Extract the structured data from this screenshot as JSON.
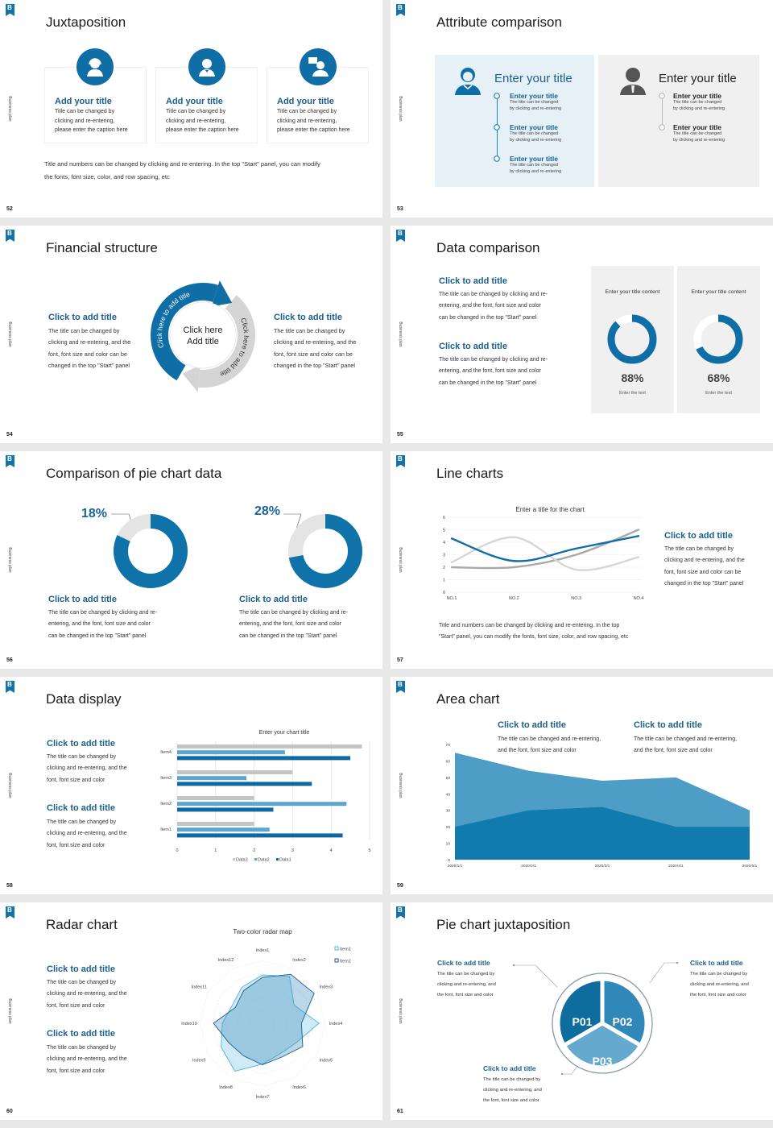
{
  "brand": {
    "side_label": "Business plan",
    "accent": "#0f6ea5",
    "title_blue": "#1a5f8d"
  },
  "s52": {
    "page": "52",
    "title": "Juxtaposition",
    "cards": [
      {
        "title": "Add your title",
        "text": "Title can be changed by\nclicking and re-entering,\nplease enter the caption here",
        "icon": "headset-person-icon"
      },
      {
        "title": "Add your title",
        "text": "Title can be changed by\nclicking and re-entering,\nplease enter the caption here",
        "icon": "person-icon"
      },
      {
        "title": "Add your title",
        "text": "Title can be changed by\nclicking and re-entering,\nplease enter the caption here",
        "icon": "person-chat-icon"
      }
    ],
    "footer": "Title and numbers can be changed by clicking and re-entering. In the top \"Start\" panel, you can modify\nthe fonts, font size, color, and row spacing, etc"
  },
  "s53": {
    "page": "53",
    "title": "Attribute comparison",
    "left": {
      "title": "Enter your title",
      "items": [
        {
          "title": "Enter your title",
          "text": "The title can be changed\nby clicking and re-entering"
        },
        {
          "title": "Enter your title",
          "text": "The title can be changed\nby clicking and re-entering"
        },
        {
          "title": "Enter your title",
          "text": "The title can be changed\nby clicking and re-entering"
        }
      ]
    },
    "right": {
      "title": "Enter your title",
      "items": [
        {
          "title": "Enter your title",
          "text": "The title can be changed\nby clicking and re-entering"
        },
        {
          "title": "Enter your title",
          "text": "The title can be changed\nby clicking and re-entering"
        }
      ]
    }
  },
  "s54": {
    "page": "54",
    "title": "Financial structure",
    "left": {
      "title": "Click to add title",
      "text": "The title can be changed by\nclicking and re-entering, and the\nfont, font size and color can be\nchanged in the top \"Start\" panel"
    },
    "right": {
      "title": "Click to add title",
      "text": "The title can be changed by\nclicking and re-entering, and the\nfont, font size and color can be\nchanged in the top \"Start\" panel"
    },
    "center": "Click here\nAdd title",
    "arc_blue": "Click here to add title",
    "arc_gray": "Click here to add title"
  },
  "s55": {
    "page": "55",
    "title": "Data comparison",
    "texts": [
      {
        "title": "Click to add title",
        "text": "The title can be changed by clicking and re-\nentering, and the font, font size and color\ncan be changed in the top \"Start\" panel"
      },
      {
        "title": "Click to add title",
        "text": "The title can be changed by clicking and re-\nentering, and the font, font size and color\ncan be changed in the top \"Start\" panel"
      }
    ],
    "cards": [
      {
        "title": "Enter your title content",
        "value": 88,
        "label": "88%",
        "sub": "Enter the text"
      },
      {
        "title": "Enter your title content",
        "value": 68,
        "label": "68%",
        "sub": "Enter the text"
      }
    ]
  },
  "s56": {
    "page": "56",
    "title": "Comparison of pie chart data",
    "pies": [
      {
        "value": 18,
        "label": "18%",
        "title": "Click to add title",
        "text": "The title can be changed by clicking and re-\nentering, and the font, font size and color\ncan be changed in the top \"Start\" panel"
      },
      {
        "value": 28,
        "label": "28%",
        "title": "Click to add title",
        "text": "The title can be changed by clicking and re-\nentering, and the font, font size and color\ncan be changed in the top \"Start\" panel"
      }
    ]
  },
  "s57": {
    "page": "57",
    "title": "Line charts",
    "side": {
      "title": "Click to add title",
      "text": "The title can be changed by\nclicking and re-entering, and the\nfont, font size and color can be\nchanged in the top \"Start\" panel"
    },
    "footer": "Title and numbers can be changed by clicking and re-entering. In the top\n\"Start\" panel, you can modify the fonts, font size, color, and row spacing, etc"
  },
  "s58": {
    "page": "58",
    "title": "Data display",
    "texts": [
      {
        "title": "Click to add title",
        "text": "The title can be changed by\nclicking and re-entering, and the\nfont, font size and color"
      },
      {
        "title": "Click to add title",
        "text": "The title can be changed by\nclicking and re-entering, and the\nfont, font size and color"
      }
    ]
  },
  "s59": {
    "page": "59",
    "title": "Area chart",
    "texts": [
      {
        "title": "Click to add title",
        "text": "The title can be changed and re-entering,\nand the font, font size and color"
      },
      {
        "title": "Click to add title",
        "text": "The title can be changed and re-entering,\nand the font, font size and color"
      }
    ]
  },
  "s60": {
    "page": "60",
    "title": "Radar chart",
    "texts": [
      {
        "title": "Click to add title",
        "text": "The title can be changed by\nclicking and re-entering, and the\nfont, font size and color"
      },
      {
        "title": "Click to add title",
        "text": "The title can be changed by\nclicking and re-entering, and the\nfont, font size and color"
      }
    ]
  },
  "s61": {
    "page": "61",
    "title": "Pie chart juxtaposition",
    "segments": [
      "P01",
      "P02",
      "P03"
    ],
    "texts": [
      {
        "title": "Click to add title",
        "text": "The title can be changed by\nclicking and re-entering, and\nthe font, font size and color"
      },
      {
        "title": "Click to add title",
        "text": "The title can be changed by\nclicking and re-entering, and\nthe font, font size and color"
      },
      {
        "title": "Click to add title",
        "text": "The title can be changed by\nclicking and re-entering, and\nthe font, font size and color"
      }
    ]
  },
  "chart_data": [
    {
      "type": "line",
      "title": "Enter a title for the chart",
      "categories": [
        "NO.1",
        "NO.2",
        "NO.3",
        "NO.4"
      ],
      "ylim": [
        0,
        6
      ],
      "yticks": [
        0,
        1,
        2,
        3,
        4,
        5,
        6
      ],
      "grid": true,
      "series": [
        {
          "values": [
            4.3,
            2.5,
            3.5,
            4.5
          ],
          "color": "#0f6ea5"
        },
        {
          "values": [
            2.4,
            4.4,
            1.8,
            2.8
          ],
          "color": "#d6d6d6"
        },
        {
          "values": [
            2.0,
            2.0,
            3.0,
            5.0
          ],
          "color": "#a8a8a8"
        }
      ]
    },
    {
      "type": "bar",
      "orientation": "horizontal",
      "title": "Enter your chart title",
      "categories": [
        "Item4",
        "Item3",
        "Item2",
        "Item1"
      ],
      "xlim": [
        0,
        5
      ],
      "xticks": [
        0,
        1,
        2,
        3,
        4,
        5
      ],
      "legend": "bottom",
      "series": [
        {
          "name": "Data3",
          "values": [
            4.8,
            3.0,
            2.0,
            2.0
          ],
          "color": "#c4c4c4"
        },
        {
          "name": "Data2",
          "values": [
            2.8,
            1.8,
            4.4,
            2.4
          ],
          "color": "#5aa6cf"
        },
        {
          "name": "Data1",
          "values": [
            4.5,
            3.5,
            2.5,
            4.3
          ],
          "color": "#0d6aa0"
        }
      ]
    },
    {
      "type": "area",
      "stacked": true,
      "categories": [
        "2020/1/1",
        "2020/2/1",
        "2020/3/1",
        "2020/4/1",
        "2020/5/1"
      ],
      "ylim": [
        0,
        70
      ],
      "yticks": [
        0,
        10,
        20,
        30,
        40,
        50,
        60,
        70
      ],
      "series": [
        {
          "values": [
            20,
            30,
            32,
            20,
            20
          ],
          "color": "#127bae"
        },
        {
          "values": [
            45,
            24,
            16,
            30,
            10
          ],
          "color": "#4e9dc6"
        }
      ]
    },
    {
      "type": "radar",
      "title": "Two-color radar map",
      "categories": [
        "Index1",
        "Index2",
        "Index3",
        "Index4",
        "Index5",
        "Index6",
        "Index7",
        "Index8",
        "Index9",
        "Index10",
        "Index11",
        "Index12"
      ],
      "rlim": [
        0,
        10
      ],
      "legend": "top-right",
      "series": [
        {
          "name": "Item1",
          "values": [
            7.7,
            8.6,
            5.8,
            9.0,
            6.2,
            5.6,
            6.5,
            8.8,
            7.6,
            6.4,
            5.6,
            6.6
          ],
          "color": "#4db3d9"
        },
        {
          "name": "Item2",
          "values": [
            7.3,
            9.0,
            9.5,
            6.2,
            7.4,
            6.2,
            6.6,
            6.0,
            6.2,
            7.8,
            5.0,
            6.0
          ],
          "color": "#1b5e85"
        }
      ]
    }
  ]
}
